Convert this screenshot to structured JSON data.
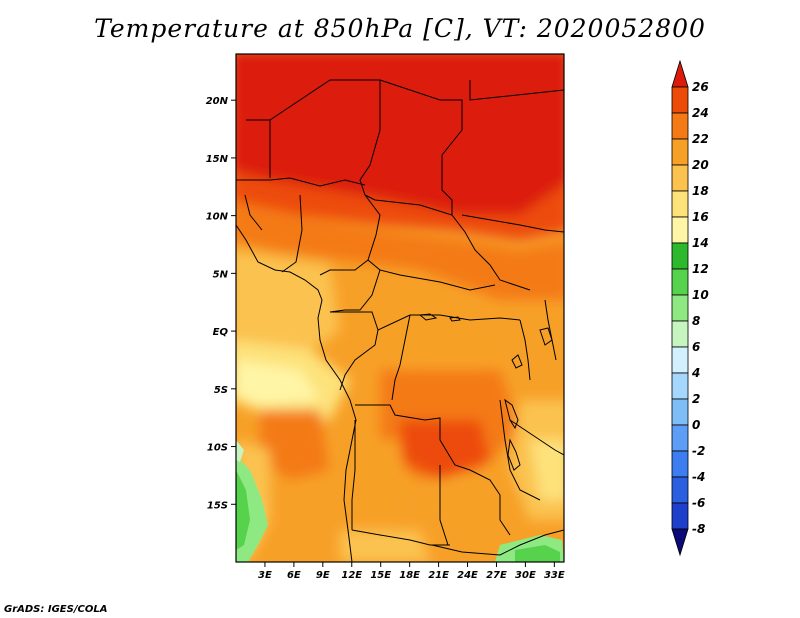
{
  "title": "Temperature at 850hPa [C], VT: 2020052800",
  "credit": "GrADS: IGES/COLA",
  "map": {
    "lon_range": [
      0,
      34
    ],
    "lat_range": [
      -20,
      24
    ],
    "x_ticks": [
      {
        "lon": 3,
        "label": "3E"
      },
      {
        "lon": 6,
        "label": "6E"
      },
      {
        "lon": 9,
        "label": "9E"
      },
      {
        "lon": 12,
        "label": "12E"
      },
      {
        "lon": 15,
        "label": "15E"
      },
      {
        "lon": 18,
        "label": "18E"
      },
      {
        "lon": 21,
        "label": "21E"
      },
      {
        "lon": 24,
        "label": "24E"
      },
      {
        "lon": 27,
        "label": "27E"
      },
      {
        "lon": 30,
        "label": "30E"
      },
      {
        "lon": 33,
        "label": "33E"
      }
    ],
    "y_ticks": [
      {
        "lat": 20,
        "label": "20N"
      },
      {
        "lat": 15,
        "label": "15N"
      },
      {
        "lat": 10,
        "label": "10N"
      },
      {
        "lat": 5,
        "label": "5N"
      },
      {
        "lat": 0,
        "label": "EQ"
      },
      {
        "lat": -5,
        "label": "5S"
      },
      {
        "lat": -10,
        "label": "10S"
      },
      {
        "lat": -15,
        "label": "15S"
      }
    ]
  },
  "colorbar": {
    "levels": [
      "-8",
      "-6",
      "-4",
      "-2",
      "0",
      "2",
      "4",
      "6",
      "8",
      "10",
      "12",
      "14",
      "16",
      "18",
      "20",
      "22",
      "24",
      "26"
    ],
    "colors": [
      "#0b0a78",
      "#1d3fcb",
      "#2a5fe0",
      "#3c7df0",
      "#5c9ef5",
      "#7fbdf7",
      "#a5d6fb",
      "#d2f0fd",
      "#c6f5c0",
      "#8fe983",
      "#56d24d",
      "#2eb82e",
      "#fff5a6",
      "#fde27a",
      "#fbc250",
      "#f7a028",
      "#f47a16",
      "#ed4b08",
      "#dc1b0c"
    ]
  }
}
